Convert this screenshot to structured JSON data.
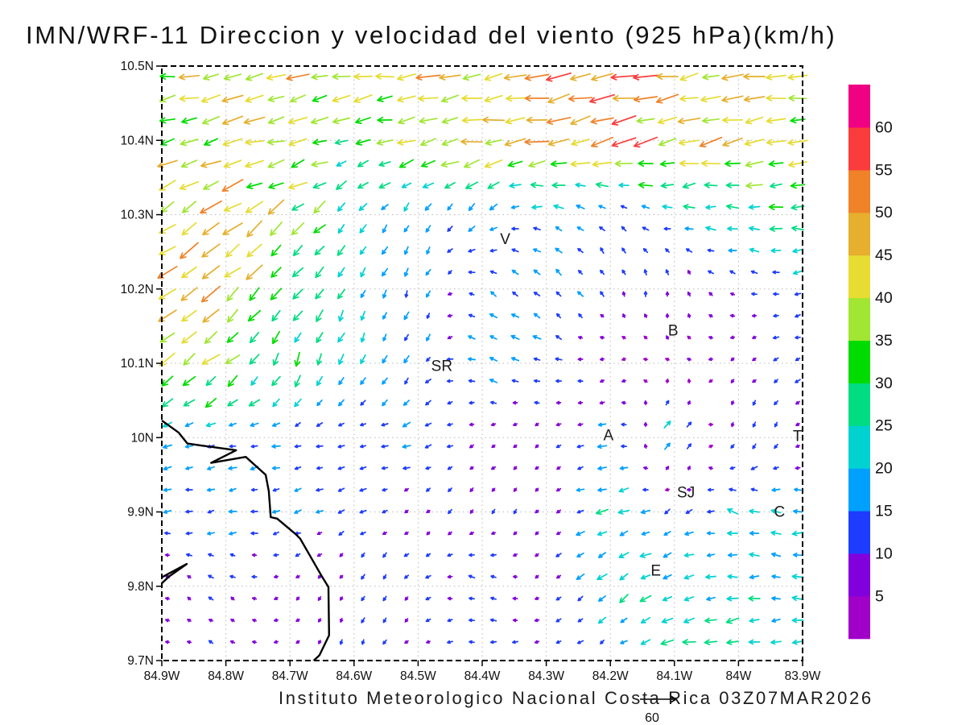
{
  "title": "IMN/WRF-11 Direccion y velocidad del viento (925 hPa)(km/h)",
  "footer": {
    "text": "Instituto Meteorologico Nacional Costa Rica 03Z07MAR2026"
  },
  "axes": {
    "lat_ticks": [
      "10.5N",
      "10.4N",
      "10.3N",
      "10.2N",
      "10.1N",
      "10N",
      "9.9N",
      "9.8N",
      "9.7N"
    ],
    "lon_ticks": [
      "84.9W",
      "84.8W",
      "84.7W",
      "84.6W",
      "84.5W",
      "84.4W",
      "84.3W",
      "84.2W",
      "84.1W",
      "84W",
      "83.9W"
    ]
  },
  "colorbar": {
    "levels": [
      5,
      10,
      15,
      20,
      25,
      30,
      35,
      40,
      45,
      50,
      55,
      60
    ],
    "labels": [
      "60",
      "55",
      "50",
      "45",
      "40",
      "35",
      "30",
      "25",
      "20",
      "15",
      "10",
      "5"
    ],
    "colors": [
      "#A000C8",
      "#8200DC",
      "#1E3CFF",
      "#00A0FF",
      "#00D2D2",
      "#00DC82",
      "#00DC00",
      "#A0E632",
      "#E6DC32",
      "#E6AF2D",
      "#F08228",
      "#FA3C3C",
      "#F00082"
    ]
  },
  "cities": [
    {
      "label": "V",
      "lon": -84.364,
      "lat": 10.267
    },
    {
      "label": "B",
      "lon": -84.102,
      "lat": 10.144
    },
    {
      "label": "SR",
      "lon": -84.463,
      "lat": 10.096
    },
    {
      "label": "A",
      "lon": -84.203,
      "lat": 10.003
    },
    {
      "label": "T",
      "lon": -83.908,
      "lat": 10.002
    },
    {
      "label": "SJ",
      "lon": -84.082,
      "lat": 9.926
    },
    {
      "label": "C",
      "lon": -83.936,
      "lat": 9.9
    },
    {
      "label": "E",
      "lon": -84.129,
      "lat": 9.821
    }
  ],
  "coastline": [
    [
      [
        -84.9,
        10.023
      ],
      [
        -84.874,
        10.007
      ],
      [
        -84.86,
        9.992
      ],
      [
        -84.835,
        9.989
      ],
      [
        -84.784,
        9.983
      ],
      [
        -84.823,
        9.966
      ],
      [
        -84.769,
        9.974
      ],
      [
        -84.738,
        9.95
      ],
      [
        -84.733,
        9.928
      ],
      [
        -84.73,
        9.893
      ],
      [
        -84.72,
        9.891
      ],
      [
        -84.691,
        9.87
      ],
      [
        -84.684,
        9.864
      ],
      [
        -84.65,
        9.813
      ],
      [
        -84.64,
        9.799
      ],
      [
        -84.639,
        9.734
      ],
      [
        -84.654,
        9.707
      ],
      [
        -84.663,
        9.697
      ]
    ],
    [
      [
        -84.9,
        9.812
      ],
      [
        -84.861,
        9.83
      ],
      [
        -84.889,
        9.813
      ],
      [
        -84.9,
        9.804
      ]
    ]
  ],
  "chart_data": {
    "type": "quiver",
    "title": "IMN/WRF-11 Direccion y velocidad del viento (925 hPa)(km/h)",
    "units": "km/h",
    "pressure_level": "925 hPa",
    "lon_range": [
      -84.9,
      -83.9
    ],
    "lat_range": [
      9.7,
      10.5
    ],
    "grid_lon": [
      -84.9,
      -84.8,
      -84.7,
      -84.6,
      -84.5,
      -84.4,
      -84.3,
      -84.2,
      -84.1,
      -84.0,
      -83.9
    ],
    "grid_lat": [
      10.5,
      10.4,
      10.3,
      10.2,
      10.1,
      10.0,
      9.9,
      9.8,
      9.7
    ],
    "u_kmh": [
      [
        -40,
        -42,
        -44,
        -45,
        -46,
        -45,
        -48,
        -50,
        -46,
        -40,
        -38
      ],
      [
        -35,
        -38,
        -40,
        -25,
        -40,
        -42,
        -46,
        -48,
        -46,
        -42,
        -40
      ],
      [
        -38,
        -42,
        -30,
        -16,
        -8,
        -14,
        -16,
        -8,
        -18,
        -25,
        -28
      ],
      [
        -36,
        -38,
        -20,
        -8,
        -6,
        -12,
        -12,
        -5,
        0,
        -10,
        -15
      ],
      [
        -30,
        -28,
        -12,
        -8,
        -6,
        -18,
        -14,
        -4,
        -4,
        -6,
        -12
      ],
      [
        -16,
        -16,
        -15,
        -14,
        -17,
        -6,
        -5,
        -18,
        18,
        -6,
        -5
      ],
      [
        -15,
        -15,
        -14,
        -12,
        -7,
        -6,
        -5,
        -26,
        -10,
        -22,
        -20
      ],
      [
        -6,
        -10,
        -5,
        -5,
        -8,
        -14,
        -5,
        -20,
        -24,
        -20,
        -22
      ],
      [
        -5,
        -8,
        -4,
        -4,
        -5,
        -14,
        -10,
        -6,
        -28,
        -30,
        -20
      ]
    ],
    "v_kmh": [
      [
        -6,
        -6,
        -8,
        -6,
        -8,
        -6,
        -8,
        -8,
        -8,
        -6,
        -5
      ],
      [
        -14,
        -12,
        -10,
        -6,
        -8,
        -8,
        -10,
        -10,
        -10,
        -8,
        -8
      ],
      [
        -24,
        -26,
        -22,
        -16,
        -16,
        -14,
        6,
        8,
        0,
        2,
        0
      ],
      [
        -30,
        -30,
        -26,
        -20,
        -16,
        8,
        12,
        10,
        12,
        4,
        -3
      ],
      [
        -26,
        -24,
        -26,
        -18,
        -14,
        8,
        4,
        -3,
        2,
        -6,
        -4
      ],
      [
        -4,
        -3,
        -4,
        -4,
        -4,
        -4,
        -5,
        -3,
        20,
        -14,
        -5
      ],
      [
        -2,
        -3,
        -3,
        -5,
        -5,
        -9,
        -5,
        -4,
        -9,
        8,
        0
      ],
      [
        3,
        7,
        -4,
        -9,
        -8,
        8,
        -6,
        -18,
        -5,
        -3,
        2
      ],
      [
        -2,
        5,
        -3,
        -12,
        -3,
        -3,
        -3,
        -5,
        -5,
        -6,
        -3
      ]
    ],
    "speed_levels": [
      5,
      10,
      15,
      20,
      25,
      30,
      35,
      40,
      45,
      50,
      55,
      60
    ],
    "speed_colors": [
      "#A000C8",
      "#8200DC",
      "#1E3CFF",
      "#00A0FF",
      "#00D2D2",
      "#00DC82",
      "#00DC00",
      "#A0E632",
      "#E6DC32",
      "#E6AF2D",
      "#F08228",
      "#FA3C3C",
      "#F00082"
    ],
    "reference_vector": {
      "value": 60,
      "label": "60"
    }
  }
}
